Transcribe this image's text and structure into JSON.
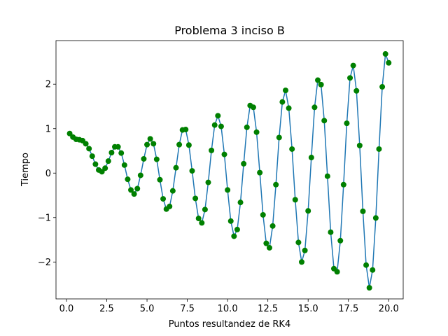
{
  "chart_data": {
    "type": "line",
    "title": "Problema 3 inciso B",
    "xlabel": "Puntos resultandez de RK4",
    "ylabel": "Tiempo",
    "x": [
      0.2,
      0.4,
      0.6,
      0.8,
      1.0,
      1.2,
      1.4,
      1.6,
      1.8,
      2.0,
      2.2,
      2.4,
      2.6,
      2.8,
      3.0,
      3.2,
      3.4,
      3.6,
      3.8,
      4.0,
      4.2,
      4.4,
      4.6,
      4.8,
      5.0,
      5.2,
      5.4,
      5.6,
      5.8,
      6.0,
      6.2,
      6.4,
      6.6,
      6.8,
      7.0,
      7.2,
      7.4,
      7.6,
      7.8,
      8.0,
      8.2,
      8.4,
      8.6,
      8.8,
      9.0,
      9.2,
      9.4,
      9.6,
      9.8,
      10.0,
      10.2,
      10.4,
      10.6,
      10.8,
      11.0,
      11.2,
      11.4,
      11.6,
      11.8,
      12.0,
      12.2,
      12.4,
      12.6,
      12.8,
      13.0,
      13.2,
      13.4,
      13.6,
      13.8,
      14.0,
      14.2,
      14.4,
      14.6,
      14.8,
      15.0,
      15.2,
      15.4,
      15.6,
      15.8,
      16.0,
      16.2,
      16.4,
      16.6,
      16.8,
      17.0,
      17.2,
      17.4,
      17.6,
      17.8,
      18.0,
      18.2,
      18.4,
      18.6,
      18.8,
      19.0,
      19.2,
      19.4,
      19.6,
      19.8,
      20.0
    ],
    "series": [
      {
        "color": "#1f77b4",
        "marker_color": "#008000",
        "values": [
          0.89,
          0.81,
          0.76,
          0.75,
          0.73,
          0.66,
          0.55,
          0.38,
          0.2,
          0.07,
          0.03,
          0.11,
          0.27,
          0.46,
          0.59,
          0.59,
          0.45,
          0.18,
          -0.14,
          -0.38,
          -0.47,
          -0.35,
          -0.05,
          0.32,
          0.64,
          0.77,
          0.66,
          0.31,
          -0.15,
          -0.58,
          -0.81,
          -0.75,
          -0.4,
          0.12,
          0.64,
          0.97,
          0.98,
          0.63,
          0.05,
          -0.57,
          -1.02,
          -1.12,
          -0.82,
          -0.21,
          0.51,
          1.08,
          1.29,
          1.05,
          0.42,
          -0.38,
          -1.08,
          -1.42,
          -1.27,
          -0.66,
          0.21,
          1.03,
          1.52,
          1.48,
          0.92,
          0.01,
          -0.94,
          -1.58,
          -1.68,
          -1.19,
          -0.26,
          0.8,
          1.6,
          1.86,
          1.46,
          0.54,
          -0.6,
          -1.56,
          -2.0,
          -1.74,
          -0.85,
          0.35,
          1.48,
          2.09,
          1.99,
          1.18,
          -0.07,
          -1.33,
          -2.15,
          -2.22,
          -1.52,
          -0.26,
          1.12,
          2.14,
          2.42,
          1.85,
          0.62,
          -0.86,
          -2.07,
          -2.58,
          -2.18,
          -1.01,
          0.54,
          1.94,
          2.68,
          2.48
        ]
      }
    ],
    "xlim": [
      -0.65,
      20.9
    ],
    "ylim": [
      -2.83,
      2.98
    ],
    "xticks": [
      {
        "value": 0,
        "label": "0.0"
      },
      2.5,
      {
        "value": 5,
        "label": "5.0"
      },
      7.5,
      {
        "value": 10,
        "label": "10.0"
      },
      12.5,
      {
        "value": 15,
        "label": "15.0"
      },
      17.5,
      {
        "value": 20,
        "label": "20.0"
      }
    ],
    "yticks": [
      {
        "value": -2,
        "label": "−2"
      },
      {
        "value": -1,
        "label": "−1"
      },
      0,
      1,
      2
    ],
    "grid": false
  }
}
